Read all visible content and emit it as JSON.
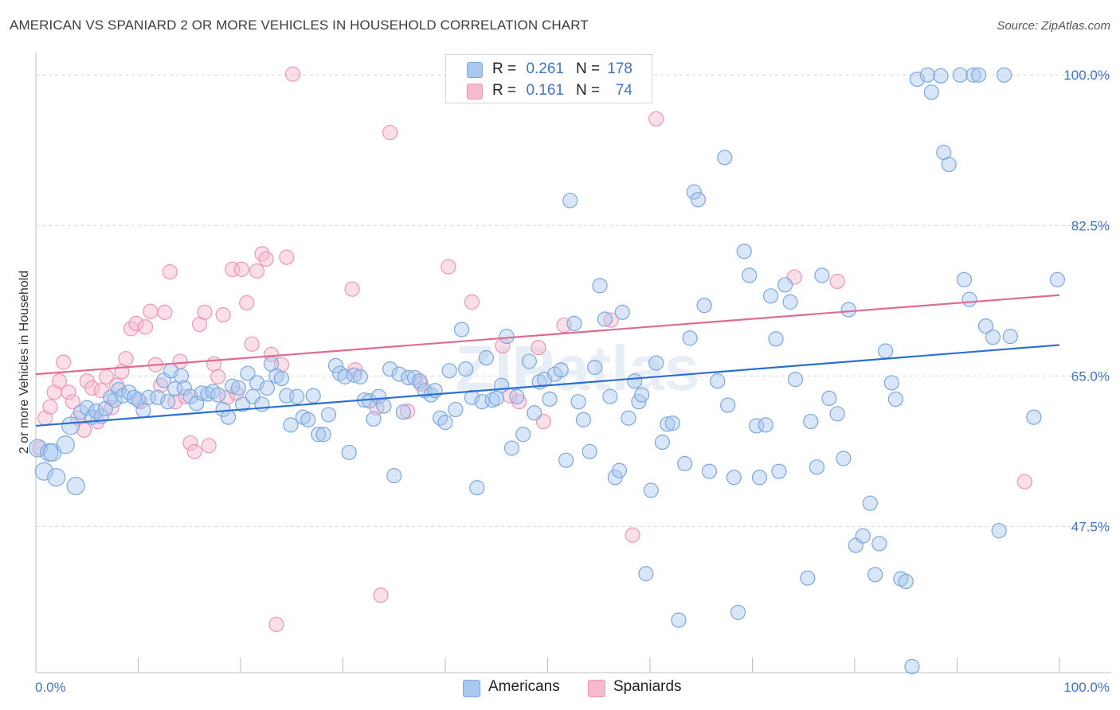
{
  "title": "AMERICAN VS SPANIARD 2 OR MORE VEHICLES IN HOUSEHOLD CORRELATION CHART",
  "source": "Source: ZipAtlas.com",
  "watermark": "ZIPatlas",
  "stats": [
    {
      "r_label": "R =",
      "r_value": "0.261",
      "n_label": "N =",
      "n_value": "178"
    },
    {
      "r_label": "R =",
      "r_value": "0.161",
      "n_label": "N =",
      "n_value": "74"
    }
  ],
  "legend": [
    "Americans",
    "Spaniards"
  ],
  "colors": {
    "americans_fill": "#a9c8f0",
    "americans_stroke": "#7aa7e0",
    "americans_line": "#2b6fd0",
    "spaniards_fill": "#f7b9cc",
    "spaniards_stroke": "#ee95b2",
    "spaniards_line": "#e06a92",
    "tick_label": "#3f74c9"
  },
  "chart_data": {
    "type": "scatter",
    "title": "AMERICAN VS SPANIARD 2 OR MORE VEHICLES IN HOUSEHOLD CORRELATION CHART",
    "xlabel": "",
    "ylabel": "2 or more Vehicles in Household",
    "x_unit": "%",
    "xlim": [
      0,
      100
    ],
    "ylim": [
      30.5,
      101.5
    ],
    "x_tick_labels": [
      "0.0%",
      "100.0%"
    ],
    "y_ticks": [
      47.5,
      65.0,
      82.5,
      100.0
    ],
    "y_tick_labels": [
      "47.5%",
      "65.0%",
      "82.5%",
      "100.0%"
    ],
    "grid": "dashed horizontal",
    "legend_position": "bottom-center",
    "series": [
      {
        "name": "Americans",
        "trend": {
          "x": [
            0,
            100
          ],
          "y": [
            59.2,
            68.6
          ]
        },
        "points": [
          [
            0.2,
            56.6
          ],
          [
            0.8,
            53.9
          ],
          [
            1.3,
            56.1
          ],
          [
            1.6,
            56.1
          ],
          [
            2.0,
            53.2
          ],
          [
            2.9,
            57.0
          ],
          [
            3.4,
            59.2
          ],
          [
            3.9,
            52.2
          ],
          [
            4.4,
            60.8
          ],
          [
            5.0,
            61.3
          ],
          [
            5.5,
            60.2
          ],
          [
            5.9,
            60.9
          ],
          [
            6.4,
            60.3
          ],
          [
            6.8,
            61.2
          ],
          [
            7.3,
            62.5
          ],
          [
            7.7,
            62.2
          ],
          [
            8.1,
            63.4
          ],
          [
            8.5,
            62.7
          ],
          [
            9.1,
            63.1
          ],
          [
            9.6,
            62.5
          ],
          [
            10.0,
            62.2
          ],
          [
            10.5,
            61.0
          ],
          [
            11.0,
            62.5
          ],
          [
            11.9,
            62.5
          ],
          [
            12.5,
            64.5
          ],
          [
            12.9,
            62.0
          ],
          [
            13.2,
            65.6
          ],
          [
            13.6,
            63.5
          ],
          [
            14.2,
            65.0
          ],
          [
            14.5,
            63.6
          ],
          [
            15.1,
            62.6
          ],
          [
            15.7,
            61.8
          ],
          [
            16.2,
            63.0
          ],
          [
            16.8,
            62.9
          ],
          [
            17.3,
            63.2
          ],
          [
            17.8,
            62.8
          ],
          [
            18.3,
            61.1
          ],
          [
            18.8,
            60.2
          ],
          [
            19.2,
            63.8
          ],
          [
            19.8,
            63.6
          ],
          [
            20.2,
            61.7
          ],
          [
            20.7,
            65.3
          ],
          [
            21.2,
            62.6
          ],
          [
            21.6,
            64.2
          ],
          [
            22.1,
            61.7
          ],
          [
            22.6,
            63.6
          ],
          [
            23.0,
            66.4
          ],
          [
            23.5,
            65.0
          ],
          [
            24.0,
            64.7
          ],
          [
            24.5,
            62.7
          ],
          [
            24.9,
            59.3
          ],
          [
            25.5,
            62.6
          ],
          [
            26.1,
            60.2
          ],
          [
            26.6,
            59.9
          ],
          [
            27.1,
            62.7
          ],
          [
            27.6,
            58.2
          ],
          [
            28.1,
            58.2
          ],
          [
            28.6,
            60.5
          ],
          [
            29.3,
            66.2
          ],
          [
            29.7,
            65.3
          ],
          [
            30.2,
            64.9
          ],
          [
            30.6,
            56.1
          ],
          [
            31.1,
            65.1
          ],
          [
            31.7,
            64.9
          ],
          [
            32.1,
            62.2
          ],
          [
            32.6,
            62.1
          ],
          [
            33.0,
            60.0
          ],
          [
            33.5,
            62.6
          ],
          [
            34.0,
            61.5
          ],
          [
            34.6,
            65.8
          ],
          [
            35.0,
            53.4
          ],
          [
            35.5,
            65.2
          ],
          [
            35.9,
            60.8
          ],
          [
            36.4,
            64.8
          ],
          [
            37.0,
            64.8
          ],
          [
            37.5,
            64.4
          ],
          [
            38.0,
            63.3
          ],
          [
            38.6,
            62.8
          ],
          [
            39.0,
            63.3
          ],
          [
            39.5,
            60.1
          ],
          [
            40.0,
            59.6
          ],
          [
            40.4,
            65.6
          ],
          [
            41.0,
            61.1
          ],
          [
            41.6,
            70.4
          ],
          [
            42.0,
            65.8
          ],
          [
            42.6,
            62.5
          ],
          [
            43.1,
            52.0
          ],
          [
            43.6,
            62.0
          ],
          [
            44.0,
            67.1
          ],
          [
            44.6,
            62.2
          ],
          [
            45.0,
            62.4
          ],
          [
            45.5,
            63.9
          ],
          [
            46.0,
            69.6
          ],
          [
            46.5,
            56.6
          ],
          [
            47.0,
            62.6
          ],
          [
            47.6,
            58.2
          ],
          [
            48.2,
            66.7
          ],
          [
            48.7,
            60.7
          ],
          [
            49.2,
            64.3
          ],
          [
            49.7,
            64.6
          ],
          [
            50.2,
            62.3
          ],
          [
            50.7,
            65.2
          ],
          [
            51.3,
            65.7
          ],
          [
            51.8,
            55.2
          ],
          [
            52.2,
            85.4
          ],
          [
            52.6,
            71.1
          ],
          [
            53.0,
            62.0
          ],
          [
            53.5,
            59.9
          ],
          [
            54.1,
            56.2
          ],
          [
            54.6,
            66.0
          ],
          [
            55.1,
            75.5
          ],
          [
            55.6,
            71.6
          ],
          [
            56.1,
            62.6
          ],
          [
            56.6,
            53.2
          ],
          [
            57.0,
            54.0
          ],
          [
            57.3,
            72.4
          ],
          [
            57.9,
            60.1
          ],
          [
            58.5,
            64.4
          ],
          [
            58.9,
            62.0
          ],
          [
            59.2,
            62.8
          ],
          [
            59.6,
            42.0
          ],
          [
            60.1,
            51.7
          ],
          [
            60.6,
            66.5
          ],
          [
            61.2,
            57.3
          ],
          [
            61.7,
            59.4
          ],
          [
            62.2,
            59.5
          ],
          [
            62.8,
            36.6
          ],
          [
            63.4,
            54.8
          ],
          [
            63.9,
            69.4
          ],
          [
            64.3,
            86.4
          ],
          [
            64.7,
            85.5
          ],
          [
            65.3,
            73.2
          ],
          [
            65.8,
            53.9
          ],
          [
            66.6,
            64.4
          ],
          [
            67.3,
            90.4
          ],
          [
            67.6,
            61.6
          ],
          [
            68.2,
            53.2
          ],
          [
            68.6,
            37.5
          ],
          [
            69.2,
            79.5
          ],
          [
            69.7,
            76.7
          ],
          [
            70.4,
            59.2
          ],
          [
            70.7,
            53.2
          ],
          [
            71.3,
            59.3
          ],
          [
            71.8,
            74.3
          ],
          [
            72.3,
            69.3
          ],
          [
            72.6,
            53.9
          ],
          [
            73.2,
            75.6
          ],
          [
            73.7,
            73.6
          ],
          [
            74.2,
            64.6
          ],
          [
            75.4,
            41.5
          ],
          [
            75.7,
            59.7
          ],
          [
            76.3,
            54.4
          ],
          [
            76.8,
            76.7
          ],
          [
            77.5,
            62.4
          ],
          [
            78.3,
            60.6
          ],
          [
            78.9,
            55.4
          ],
          [
            79.4,
            72.7
          ],
          [
            80.1,
            45.3
          ],
          [
            80.8,
            46.4
          ],
          [
            81.5,
            50.2
          ],
          [
            82.0,
            41.9
          ],
          [
            82.4,
            45.5
          ],
          [
            83.0,
            67.9
          ],
          [
            83.6,
            64.2
          ],
          [
            84.0,
            62.3
          ],
          [
            84.5,
            41.4
          ],
          [
            85.0,
            41.1
          ],
          [
            85.6,
            31.2
          ],
          [
            86.1,
            99.5
          ],
          [
            87.1,
            100.0
          ],
          [
            87.5,
            98.0
          ],
          [
            88.4,
            99.9
          ],
          [
            88.7,
            91.0
          ],
          [
            89.2,
            89.6
          ],
          [
            90.3,
            100.0
          ],
          [
            90.7,
            76.2
          ],
          [
            91.2,
            73.9
          ],
          [
            91.6,
            100.0
          ],
          [
            92.1,
            100.0
          ],
          [
            92.8,
            70.8
          ],
          [
            93.5,
            69.5
          ],
          [
            94.1,
            47.0
          ],
          [
            94.6,
            100.0
          ],
          [
            95.2,
            69.6
          ],
          [
            97.5,
            60.2
          ],
          [
            99.8,
            76.2
          ]
        ]
      },
      {
        "name": "Spaniards",
        "trend": {
          "x": [
            0,
            100
          ],
          "y": [
            65.2,
            74.4
          ]
        },
        "points": [
          [
            0.4,
            56.6
          ],
          [
            0.9,
            60.1
          ],
          [
            1.4,
            61.4
          ],
          [
            1.8,
            63.1
          ],
          [
            2.3,
            64.4
          ],
          [
            2.7,
            66.6
          ],
          [
            3.2,
            63.1
          ],
          [
            3.6,
            62.0
          ],
          [
            4.1,
            60.1
          ],
          [
            4.7,
            58.7
          ],
          [
            5.0,
            64.4
          ],
          [
            5.5,
            63.6
          ],
          [
            6.0,
            59.7
          ],
          [
            6.4,
            63.3
          ],
          [
            6.9,
            64.9
          ],
          [
            7.4,
            61.3
          ],
          [
            7.9,
            63.9
          ],
          [
            8.4,
            65.5
          ],
          [
            8.8,
            67.0
          ],
          [
            9.3,
            70.5
          ],
          [
            9.8,
            71.1
          ],
          [
            10.2,
            62.0
          ],
          [
            10.7,
            70.7
          ],
          [
            11.2,
            72.5
          ],
          [
            11.7,
            66.3
          ],
          [
            12.2,
            63.9
          ],
          [
            12.6,
            72.4
          ],
          [
            13.1,
            77.1
          ],
          [
            13.6,
            62.0
          ],
          [
            14.1,
            66.7
          ],
          [
            14.6,
            62.6
          ],
          [
            15.1,
            57.2
          ],
          [
            15.5,
            56.2
          ],
          [
            16.0,
            71.0
          ],
          [
            16.5,
            72.4
          ],
          [
            16.9,
            56.9
          ],
          [
            17.4,
            66.4
          ],
          [
            17.8,
            64.9
          ],
          [
            18.3,
            72.1
          ],
          [
            18.7,
            62.5
          ],
          [
            19.2,
            77.4
          ],
          [
            19.6,
            63.0
          ],
          [
            20.1,
            77.4
          ],
          [
            20.6,
            73.5
          ],
          [
            21.1,
            68.7
          ],
          [
            21.6,
            77.2
          ],
          [
            22.1,
            79.2
          ],
          [
            22.5,
            78.6
          ],
          [
            23.0,
            67.5
          ],
          [
            23.5,
            36.1
          ],
          [
            24.0,
            66.3
          ],
          [
            24.5,
            78.8
          ],
          [
            25.1,
            100.1
          ],
          [
            30.9,
            75.1
          ],
          [
            31.2,
            65.7
          ],
          [
            33.3,
            61.3
          ],
          [
            33.7,
            39.5
          ],
          [
            34.6,
            93.3
          ],
          [
            36.3,
            60.9
          ],
          [
            37.6,
            64.1
          ],
          [
            40.3,
            77.7
          ],
          [
            42.6,
            73.6
          ],
          [
            45.6,
            68.5
          ],
          [
            46.3,
            62.7
          ],
          [
            47.2,
            62.0
          ],
          [
            49.1,
            68.3
          ],
          [
            49.6,
            59.7
          ],
          [
            51.6,
            70.9
          ],
          [
            56.2,
            71.5
          ],
          [
            58.3,
            46.5
          ],
          [
            60.6,
            94.9
          ],
          [
            74.1,
            76.5
          ],
          [
            78.3,
            76.0
          ],
          [
            96.6,
            52.7
          ]
        ]
      }
    ]
  }
}
